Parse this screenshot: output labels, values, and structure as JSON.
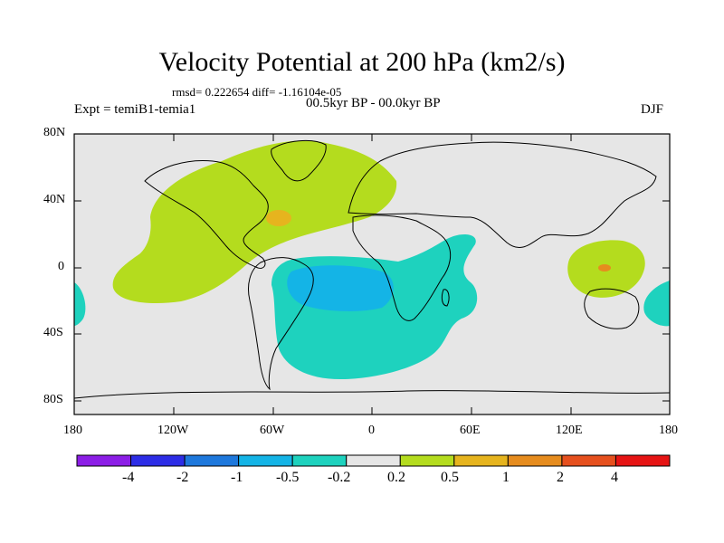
{
  "title": "Velocity Potential at 200 hPa (km2/s)",
  "stats": "rmsd= 0.222654 diff= -1.16104e-05",
  "experiment": "Expt = temiB1-temia1",
  "period": "00.5kyr BP - 00.0kyr BP",
  "season": "DJF",
  "lat_labels": [
    "80N",
    "40N",
    "0",
    "40S",
    "80S"
  ],
  "lon_labels": [
    "180",
    "120W",
    "60W",
    "0",
    "60E",
    "120E",
    "180"
  ],
  "colorbar": {
    "colors": [
      "#8c1ee6",
      "#2d2de6",
      "#1e78dc",
      "#14b4e6",
      "#1ed2be",
      "#e6e6e6",
      "#b4dc1e",
      "#e6b41e",
      "#e68c1e",
      "#e6501e",
      "#e61414"
    ],
    "labels": [
      "-4",
      "-2",
      "-1",
      "-0.5",
      "-0.2",
      "0.2",
      "0.5",
      "1",
      "2",
      "4"
    ]
  },
  "colors": {
    "ocean_land_background": "#e6e6e6",
    "positive_weak": "#b4dc1e",
    "positive_mid": "#e6b41e",
    "positive_strong": "#e68c1e",
    "negative_weak": "#1ed2be",
    "negative_mid": "#14b4e6"
  }
}
